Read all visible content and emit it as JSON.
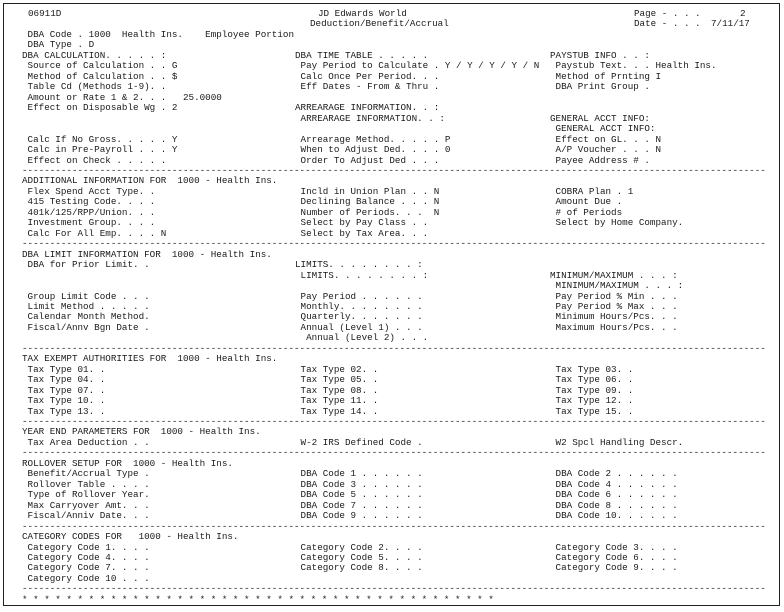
{
  "header": {
    "report_id": "06911D",
    "system_title": "JD Edwards World",
    "report_title": "Deduction/Benefit/Accrual",
    "page_label": "Page - . . .",
    "page_number": "2",
    "date_label": "Date - . . .",
    "date_value": "7/11/17"
  },
  "rows": [
    {
      "c": [
        " DBA Code . 1000  Health Ins.    Employee Portion",
        "",
        ""
      ]
    },
    {
      "c": [
        " DBA Type . D",
        "",
        ""
      ]
    },
    {
      "c": [
        "DBA CALCULATION. . . . . :",
        "DBA TIME TABLE . . . . .",
        "PAYSTUB INFO . . :"
      ]
    },
    {
      "c": [
        " Source of Calculation . . G",
        " Pay Period to Calculate . Y / Y / Y / Y / N",
        " Paystub Text. . . Health Ins."
      ]
    },
    {
      "c": [
        " Method of Calculation . . $",
        " Calc Once Per Period. . .",
        " Method of Prnting I"
      ]
    },
    {
      "c": [
        " Table Cd (Methods 1-9). .",
        " Eff Dates - From & Thru .",
        " DBA Print Group ."
      ]
    },
    {
      "c": [
        " Amount or Rate 1 & 2. . .   25.0000",
        "",
        ""
      ]
    },
    {
      "c": [
        " Effect on Disposable Wg . 2",
        "ARREARAGE INFORMATION. . :",
        ""
      ]
    },
    {
      "c": [
        "",
        " ARREARAGE INFORMATION. . :",
        "GENERAL ACCT INFO:"
      ]
    },
    {
      "c": [
        "",
        "",
        " GENERAL ACCT INFO:"
      ]
    },
    {
      "c": [
        " Calc If No Gross. . . . . Y",
        " Arrearage Method. . . . . P",
        " Effect on GL. . . N"
      ]
    },
    {
      "c": [
        " Calc in Pre-Payroll . . . Y",
        " When to Adjust Ded. . . . 0",
        " A/P Voucher . . . N"
      ]
    },
    {
      "c": [
        " Effect on Check . . . . .",
        " Order To Adjust Ded . . .",
        " Payee Address # ."
      ]
    },
    {
      "dash": true
    },
    {
      "c": [
        "ADDITIONAL INFORMATION FOR  1000 - Health Ins.",
        "",
        ""
      ]
    },
    {
      "c": [
        " Flex Spend Acct Type. .",
        " Incld in Union Plan . . N",
        " COBRA Plan . 1"
      ]
    },
    {
      "c": [
        " 415 Testing Code. . . .",
        " Declining Balance . . . N",
        " Amount Due ."
      ]
    },
    {
      "c": [
        " 401k/125/RPP/Union. . .",
        " Number of Periods. . .  N",
        " # of Periods"
      ]
    },
    {
      "c": [
        " Investment Group. . . .",
        " Select by Pay Class . .",
        " Select by Home Company."
      ]
    },
    {
      "c": [
        " Calc For All Emp. . . . N",
        " Select by Tax Area. . .",
        ""
      ]
    },
    {
      "dash": true
    },
    {
      "c": [
        "DBA LIMIT INFORMATION FOR  1000 - Health Ins.",
        "",
        ""
      ]
    },
    {
      "c": [
        " DBA for Prior Limit. .",
        "LIMITS. . . . . . . . :",
        ""
      ]
    },
    {
      "c": [
        "",
        " LIMITS. . . . . . . . :",
        "MINIMUM/MAXIMUM . . . :"
      ]
    },
    {
      "c": [
        "",
        "",
        " MINIMUM/MAXIMUM . . . :"
      ]
    },
    {
      "c": [
        " Group Limit Code . . .",
        " Pay Period . . . . . .",
        " Pay Period % Min . . ."
      ]
    },
    {
      "c": [
        " Limit Method . . . . .",
        " Monthly. . . . . . . .",
        " Pay Period % Max . . ."
      ]
    },
    {
      "c": [
        " Calendar Month Method.",
        " Quarterly. . . . . . .",
        " Minimum Hours/Pcs. . ."
      ]
    },
    {
      "c": [
        " Fiscal/Annv Bgn Date .",
        " Annual (Level 1) . . .",
        " Maximum Hours/Pcs. . ."
      ]
    },
    {
      "c": [
        "",
        "  Annual (Level 2) . . .",
        ""
      ]
    },
    {
      "dash": true
    },
    {
      "c": [
        "TAX EXEMPT AUTHORITIES FOR  1000 - Health Ins.",
        "",
        ""
      ]
    },
    {
      "c": [
        " Tax Type 01. .",
        " Tax Type 02. .",
        " Tax Type 03. ."
      ]
    },
    {
      "c": [
        " Tax Type 04. .",
        " Tax Type 05. .",
        " Tax Type 06. ."
      ]
    },
    {
      "c": [
        " Tax Type 07. .",
        " Tax Type 08. .",
        " Tax Type 09. ."
      ]
    },
    {
      "c": [
        " Tax Type 10. .",
        " Tax Type 11. .",
        " Tax Type 12. ."
      ]
    },
    {
      "c": [
        " Tax Type 13. .",
        " Tax Type 14. .",
        " Tax Type 15. ."
      ]
    },
    {
      "dash": true
    },
    {
      "c": [
        "YEAR END PARAMETERS FOR  1000 - Health Ins.",
        "",
        ""
      ]
    },
    {
      "c": [
        " Tax Area Deduction . .",
        " W-2 IRS Defined Code .",
        " W2 Spcl Handling Descr."
      ]
    },
    {
      "dash": true
    },
    {
      "c": [
        "ROLLOVER SETUP FOR  1000 - Health Ins.",
        "",
        ""
      ]
    },
    {
      "c": [
        " Benefit/Accrual Type .",
        " DBA Code 1 . . . . . .",
        " DBA Code 2 . . . . . ."
      ]
    },
    {
      "c": [
        " Rollover Table . . . .",
        " DBA Code 3 . . . . . .",
        " DBA Code 4 . . . . . ."
      ]
    },
    {
      "c": [
        " Type of Rollover Year.",
        " DBA Code 5 . . . . . .",
        " DBA Code 6 . . . . . ."
      ]
    },
    {
      "c": [
        " Max Carryover Amt. . .",
        " DBA Code 7 . . . . . .",
        " DBA Code 8 . . . . . ."
      ]
    },
    {
      "c": [
        " Fiscal/Anniv Date. . .",
        " DBA Code 9 . . . . . .",
        " DBA Code 10. . . . . ."
      ]
    },
    {
      "dash": true
    },
    {
      "c": [
        "CATEGORY CODES FOR   1000 - Health Ins.",
        "",
        ""
      ]
    },
    {
      "c": [
        " Category Code 1. . . .",
        " Category Code 2. . . .",
        " Category Code 3. . . ."
      ]
    },
    {
      "c": [
        " Category Code 4. . . .",
        " Category Code 5. . . .",
        " Category Code 6. . . ."
      ]
    },
    {
      "c": [
        " Category Code 7. . . .",
        " Category Code 8. . . .",
        " Category Code 9. . . ."
      ]
    },
    {
      "c": [
        " Category Code 10 . . .",
        "",
        ""
      ]
    },
    {
      "dash": true
    },
    {
      "stars": true
    }
  ]
}
